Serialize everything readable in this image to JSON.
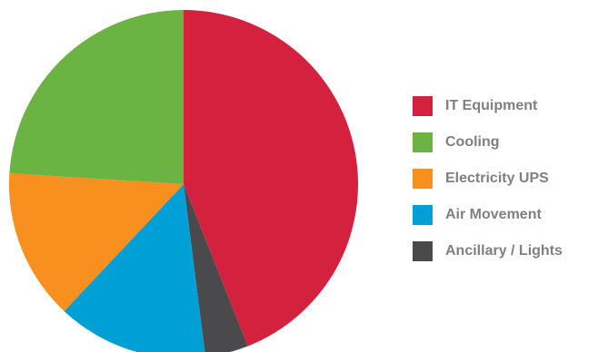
{
  "chart_data": {
    "type": "pie",
    "title": "",
    "start_angle_deg": -90,
    "legend_position": "right",
    "slices": [
      {
        "label": "IT Equipment",
        "value": 44,
        "color": "#D4213D"
      },
      {
        "label": "Ancillary / Lights",
        "value": 4,
        "color": "#4A4A4C"
      },
      {
        "label": "Air Movement",
        "value": 14,
        "color": "#009FD6"
      },
      {
        "label": "Electricity UPS",
        "value": 14,
        "color": "#F7901E"
      },
      {
        "label": "Cooling",
        "value": 24,
        "color": "#6BB343"
      }
    ],
    "legend": [
      {
        "label": "IT Equipment",
        "color": "#D4213D"
      },
      {
        "label": "Cooling",
        "color": "#6BB343"
      },
      {
        "label": "Electricity UPS",
        "color": "#F7901E"
      },
      {
        "label": "Air Movement",
        "color": "#009FD6"
      },
      {
        "label": "Ancillary / Lights",
        "color": "#4A4A4C"
      }
    ]
  }
}
